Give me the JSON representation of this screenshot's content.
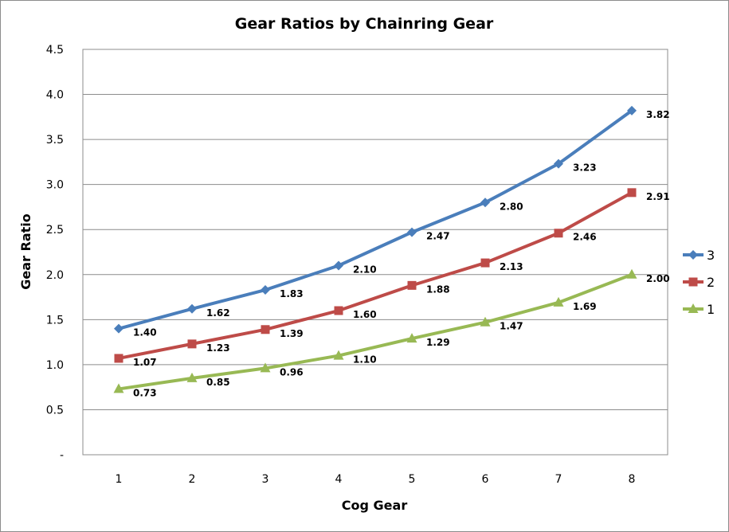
{
  "chart_data": {
    "type": "line",
    "title": "Gear Ratios by Chainring Gear",
    "xlabel": "Cog Gear",
    "ylabel": "Gear Ratio",
    "categories": [
      "1",
      "2",
      "3",
      "4",
      "5",
      "6",
      "7",
      "8"
    ],
    "y_tick_labels": [
      "-",
      "0.5",
      "1.0",
      "1.5",
      "2.0",
      "2.5",
      "3.0",
      "3.5",
      "4.0",
      "4.5"
    ],
    "ylim": [
      0,
      4.5
    ],
    "grid": "horizontal",
    "legend_position": "right",
    "series": [
      {
        "name": "3",
        "color": "#4a7ebb",
        "marker": "diamond",
        "values": [
          1.4,
          1.62,
          1.83,
          2.1,
          2.47,
          2.8,
          3.23,
          3.82
        ],
        "labels": [
          "1.40",
          "1.62",
          "1.83",
          "2.10",
          "2.47",
          "2.80",
          "3.23",
          "3.82"
        ]
      },
      {
        "name": "2",
        "color": "#be4b48",
        "marker": "square",
        "values": [
          1.07,
          1.23,
          1.39,
          1.6,
          1.88,
          2.13,
          2.46,
          2.91
        ],
        "labels": [
          "1.07",
          "1.23",
          "1.39",
          "1.60",
          "1.88",
          "2.13",
          "2.46",
          "2.91"
        ]
      },
      {
        "name": "1",
        "color": "#98b954",
        "marker": "triangle",
        "values": [
          0.73,
          0.85,
          0.96,
          1.1,
          1.29,
          1.47,
          1.69,
          2.0
        ],
        "labels": [
          "0.73",
          "0.85",
          "0.96",
          "1.10",
          "1.29",
          "1.47",
          "1.69",
          "2.00"
        ]
      }
    ]
  }
}
